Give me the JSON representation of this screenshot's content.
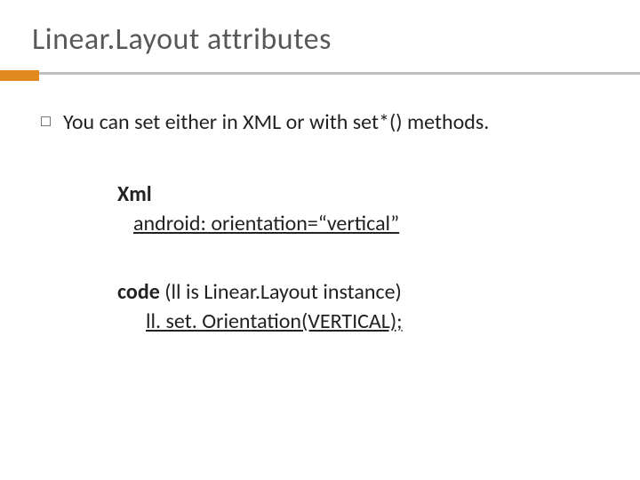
{
  "title": "Linear.Layout attributes",
  "accent_color": "#e08a1e",
  "rule_color": "#bfbfbf",
  "title_color": "#585858",
  "text_color": "#222222",
  "background_color": "#ffffff",
  "title_fontsize": 34,
  "body_fontsize": 24,
  "bullet": {
    "text": "You can set either in XML or with set*() methods."
  },
  "xml_block": {
    "label": "Xml",
    "line": "android: orientation=“vertical”"
  },
  "code_block": {
    "label": "code",
    "paren": " (ll is Linear.Layout instance)",
    "line": "ll. set. Orientation(VERTICAL);"
  }
}
